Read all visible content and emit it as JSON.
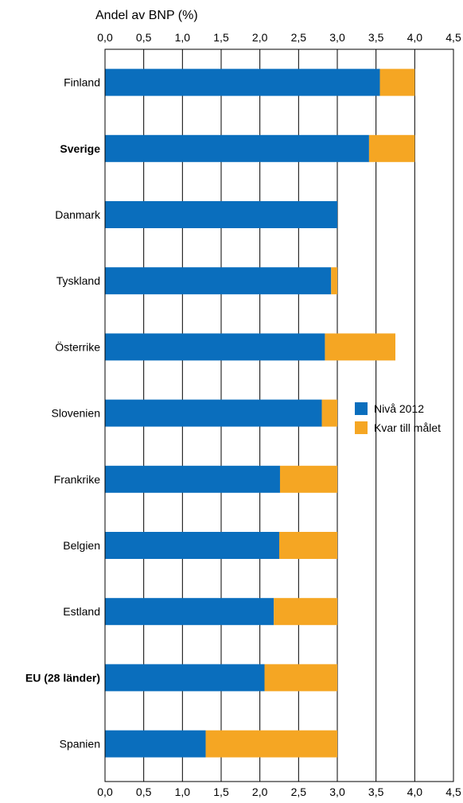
{
  "chart_data": {
    "type": "bar",
    "orientation": "horizontal",
    "stacked": true,
    "xlabel": "Andel av BNP (%)",
    "xlim": [
      0,
      4.5
    ],
    "xticks": [
      "0,0",
      "0,5",
      "1,0",
      "1,5",
      "2,0",
      "2,5",
      "3,0",
      "3,5",
      "4,0",
      "4,5"
    ],
    "grid": true,
    "legend_placement": "right",
    "categories": [
      "Finland",
      "Sverige",
      "Danmark",
      "Tyskland",
      "Österrike",
      "Slovenien",
      "Frankrike",
      "Belgien",
      "Estland",
      "EU (28 länder)",
      "Spanien"
    ],
    "bold_categories": [
      "Sverige",
      "EU (28 länder)"
    ],
    "series": [
      {
        "name": "Nivå 2012",
        "color": "#0a6ebd",
        "values": [
          3.55,
          3.41,
          3.0,
          2.92,
          2.84,
          2.8,
          2.26,
          2.25,
          2.18,
          2.06,
          1.3
        ]
      },
      {
        "name": "Kvar till målet",
        "color": "#f5a623",
        "values": [
          0.45,
          0.59,
          0.0,
          0.08,
          0.91,
          0.2,
          0.74,
          0.75,
          0.82,
          0.94,
          1.7
        ]
      }
    ]
  }
}
